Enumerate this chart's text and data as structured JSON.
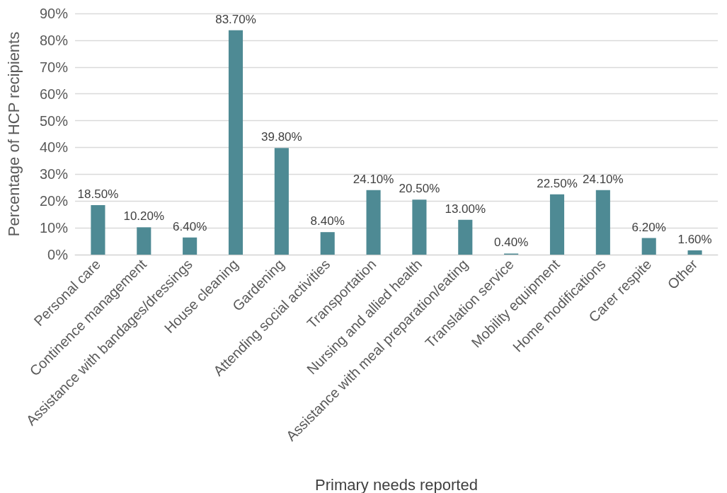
{
  "chart_data": {
    "type": "bar",
    "xlabel": "Primary needs reported",
    "ylabel": "Percentage of HCP recipients",
    "categories": [
      "Personal care",
      "Continence management",
      "Assistance with bandages/dressings",
      "House cleaning",
      "Gardening",
      "Attending social activities",
      "Transportation",
      "Nursing and allied health",
      "Assistance with meal preparation/eating",
      "Translation service",
      "Mobility equipment",
      "Home modifications",
      "Carer respite",
      "Other"
    ],
    "values": [
      18.5,
      10.2,
      6.4,
      83.7,
      39.8,
      8.4,
      24.1,
      20.5,
      13.0,
      0.4,
      22.5,
      24.1,
      6.2,
      1.6
    ],
    "value_labels": [
      "18.50%",
      "10.20%",
      "6.40%",
      "83.70%",
      "39.80%",
      "8.40%",
      "24.10%",
      "20.50%",
      "13.00%",
      "0.40%",
      "22.50%",
      "24.10%",
      "6.20%",
      "1.60%"
    ],
    "color": "#4e8a94",
    "ylim": [
      0,
      90
    ],
    "yticks": [
      {
        "value": 0,
        "label": "0%"
      },
      {
        "value": 10,
        "label": "10%"
      },
      {
        "value": 20,
        "label": "20%"
      },
      {
        "value": 30,
        "label": "30%"
      },
      {
        "value": 40,
        "label": "40%"
      },
      {
        "value": 50,
        "label": "50%"
      },
      {
        "value": 60,
        "label": "60%"
      },
      {
        "value": 70,
        "label": "70%"
      },
      {
        "value": 80,
        "label": "80%"
      },
      {
        "value": 90,
        "label": "90%"
      }
    ],
    "grid": "y"
  }
}
